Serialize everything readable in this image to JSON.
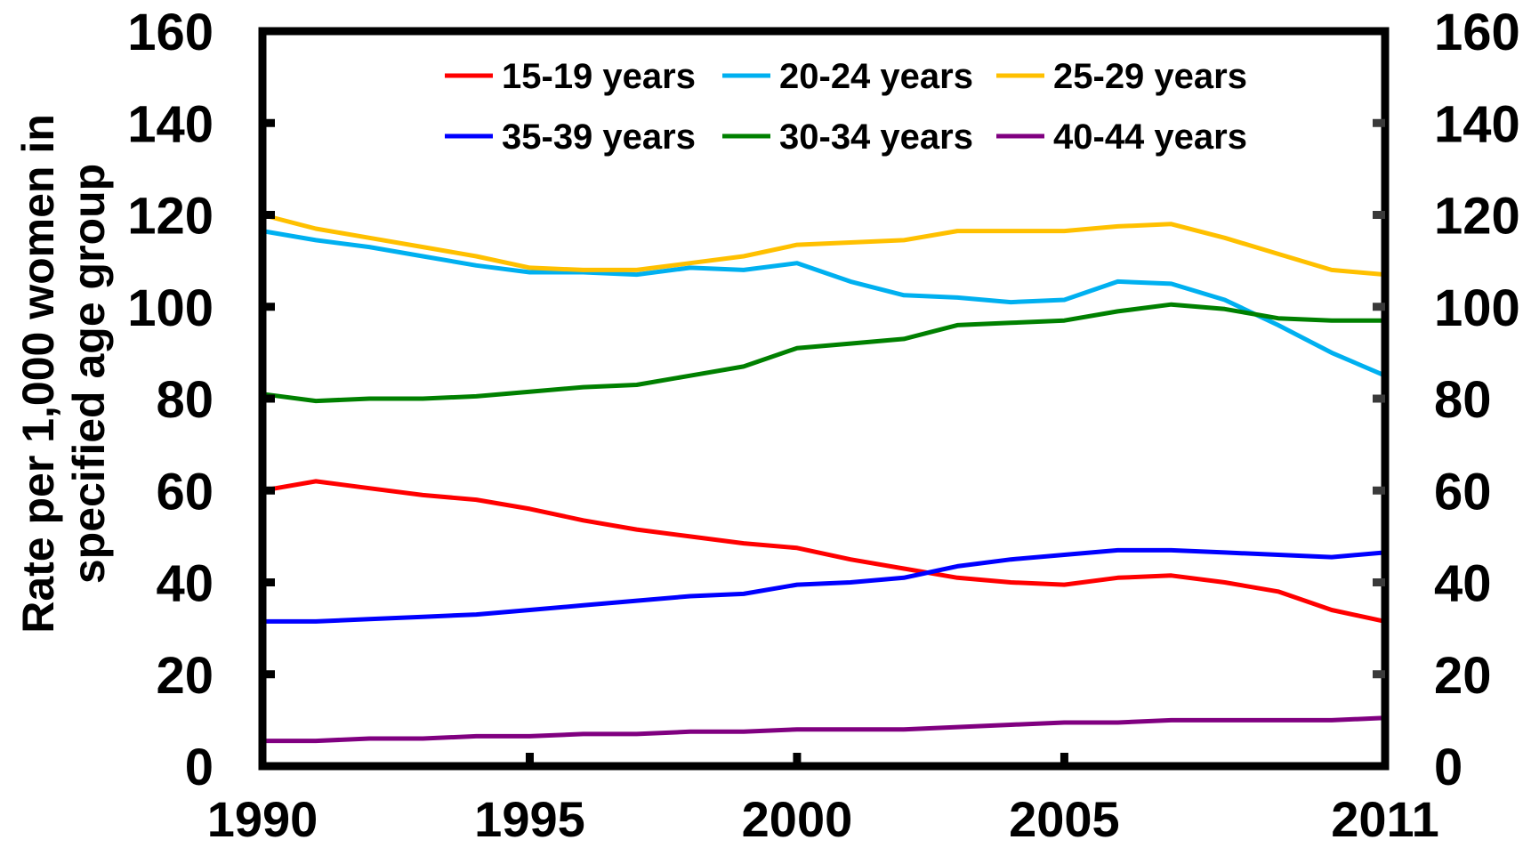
{
  "chart_data": {
    "type": "line",
    "title": "",
    "xlabel": "",
    "ylabel_lines": [
      "Rate per 1,000 women in",
      "specified age group"
    ],
    "xlim": [
      1990,
      2011
    ],
    "ylim": [
      0,
      160
    ],
    "y_ticks": [
      0,
      20,
      40,
      60,
      80,
      100,
      120,
      140,
      160
    ],
    "y_tick_labels": [
      "0",
      "20",
      "40",
      "60",
      "80",
      "100",
      "120",
      "140",
      "160"
    ],
    "x_ticks": [
      1990,
      1995,
      2000,
      2005,
      2011
    ],
    "x_tick_labels": [
      "1990",
      "1995",
      "2000",
      "2005",
      "2011"
    ],
    "secondary_y_axis": true,
    "grid": false,
    "legend_position": "top",
    "x": [
      1990,
      1991,
      1992,
      1993,
      1994,
      1995,
      1996,
      1997,
      1998,
      1999,
      2000,
      2001,
      2002,
      2003,
      2004,
      2005,
      2006,
      2007,
      2008,
      2009,
      2010,
      2011
    ],
    "series": [
      {
        "name": "15-19 years",
        "color": "#ff0000",
        "values": [
          60,
          62,
          60.5,
          59,
          58,
          56,
          53.5,
          51.5,
          50,
          48.5,
          47.5,
          45,
          43,
          41,
          40,
          39.5,
          41,
          41.5,
          40,
          38,
          34,
          31.5
        ]
      },
      {
        "name": "20-24 years",
        "color": "#00b0f0",
        "values": [
          116.5,
          114.5,
          113,
          111,
          109,
          107.5,
          107.5,
          107,
          108.5,
          108,
          109.5,
          105.5,
          102.5,
          102,
          101,
          101.5,
          105.5,
          105,
          101.5,
          96,
          90,
          85
        ]
      },
      {
        "name": "25-29 years",
        "color": "#ffc000",
        "values": [
          120,
          117,
          115,
          113,
          111,
          108.5,
          108,
          108,
          109.5,
          111,
          113.5,
          114,
          114.5,
          116.5,
          116.5,
          116.5,
          117.5,
          118,
          115,
          111.5,
          108,
          107
        ]
      },
      {
        "name": "35-39 years",
        "color": "#0000ff",
        "values": [
          31.5,
          31.5,
          32,
          32.5,
          33,
          34,
          35,
          36,
          37,
          37.5,
          39.5,
          40,
          41,
          43.5,
          45,
          46,
          47,
          47,
          46.5,
          46,
          45.5,
          46.5
        ]
      },
      {
        "name": "30-34 years",
        "color": "#008000",
        "values": [
          81,
          79.5,
          80,
          80,
          80.5,
          81.5,
          82.5,
          83,
          85,
          87,
          91,
          92,
          93,
          96,
          96.5,
          97,
          99,
          100.5,
          99.5,
          97.5,
          97,
          97
        ]
      },
      {
        "name": "40-44 years",
        "color": "#800080",
        "values": [
          5.5,
          5.5,
          6,
          6,
          6.5,
          6.5,
          7,
          7,
          7.5,
          7.5,
          8,
          8,
          8,
          8.5,
          9,
          9.5,
          9.5,
          10,
          10,
          10,
          10,
          10.5
        ]
      }
    ]
  }
}
